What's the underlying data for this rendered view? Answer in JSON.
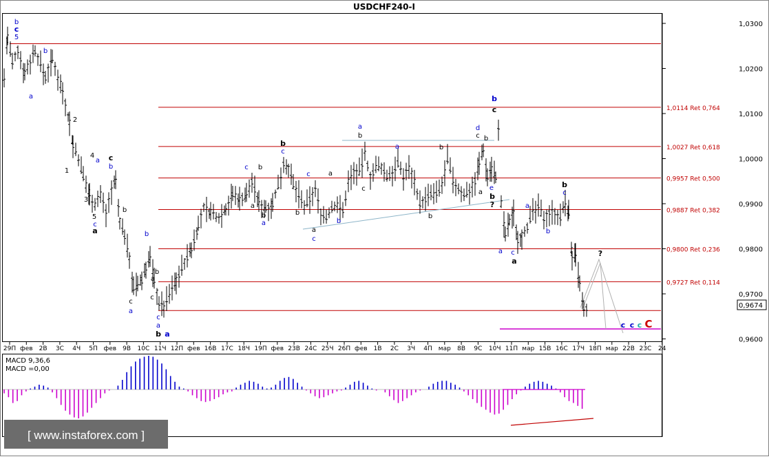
{
  "window": {
    "title": "USDCHF240-I"
  },
  "chart_data": {
    "type": "candlestick",
    "symbol": "USDCHF240-I",
    "timeframe": "H4",
    "y_range": [
      0.9585,
      1.0315
    ],
    "price_ticks": [
      "1,0300",
      "1,0200",
      "1,0100",
      "1,0000",
      "0,9900",
      "0,9800",
      "0,9700",
      "0,9600"
    ],
    "current_price": "0,9674",
    "date_ticks": [
      "29П",
      "фев",
      "2В",
      "3С",
      "4Ч",
      "5П",
      "фев",
      "9В",
      "10С",
      "11Ч",
      "12П",
      "фев",
      "16В",
      "17С",
      "18Ч",
      "19П",
      "фев",
      "23В",
      "24С",
      "25Ч",
      "26П",
      "фев",
      "1В",
      "2С",
      "3Ч",
      "4П",
      "мар",
      "8В",
      "9С",
      "10Ч",
      "11П",
      "мар",
      "15В",
      "16С",
      "17Ч",
      "18П",
      "мар",
      "22В",
      "23С",
      "24"
    ],
    "retracement_levels": [
      {
        "price": 1.0114,
        "label": "1,0114 Ret 0,764"
      },
      {
        "price": 1.0027,
        "label": "1,0027 Ret 0,618"
      },
      {
        "price": 0.9957,
        "label": "0,9957 Ret 0,500"
      },
      {
        "price": 0.9887,
        "label": "0,9887 Ret 0,382"
      },
      {
        "price": 0.98,
        "label": "0,9800 Ret 0,236"
      },
      {
        "price": 0.9727,
        "label": "0,9727 Ret 0,114"
      }
    ],
    "wave_labels": [
      "b",
      "c",
      "5",
      "b",
      "a",
      "1",
      "2",
      "3",
      "4",
      "5",
      "c",
      "a",
      "a",
      "c",
      "b",
      "b",
      "b",
      "c",
      "a",
      "c",
      "a",
      "c",
      "a",
      "b",
      "a",
      "b",
      "c",
      "b",
      "a",
      "b",
      "a",
      "b",
      "c",
      "b",
      "c",
      "a",
      "c",
      "a",
      "b",
      "a",
      "b",
      "c",
      "a",
      "b",
      "b",
      "d",
      "c",
      "b",
      "a",
      "e",
      "b",
      "?",
      "b",
      "c",
      "a",
      "c",
      "a",
      "a",
      "b",
      "b",
      "c",
      "?",
      "c",
      "c",
      "c",
      "C"
    ],
    "indicator": {
      "name": "MACD",
      "params_label": "MACD 9,36,6",
      "value_label": "MACD =0,00",
      "positive_color": "#0000cc",
      "negative_color": "#cc00cc",
      "values": [
        -0.4,
        -0.8,
        -1.4,
        -1.2,
        -0.6,
        -0.2,
        0.1,
        0.3,
        0.5,
        0.4,
        0.2,
        -0.3,
        -0.9,
        -1.6,
        -2.2,
        -2.6,
        -2.9,
        -3.0,
        -2.8,
        -2.4,
        -1.9,
        -1.4,
        -0.9,
        -0.4,
        -0.1,
        0.0,
        0.4,
        1.0,
        1.8,
        2.4,
        2.9,
        3.2,
        3.4,
        3.5,
        3.4,
        3.1,
        2.7,
        2.1,
        1.4,
        0.8,
        0.3,
        0.1,
        -0.2,
        -0.6,
        -0.9,
        -1.2,
        -1.3,
        -1.2,
        -1.0,
        -0.8,
        -0.5,
        -0.3,
        -0.2,
        0.2,
        0.5,
        0.7,
        0.9,
        0.8,
        0.6,
        0.3,
        0.1,
        0.2,
        0.5,
        0.9,
        1.2,
        1.3,
        1.1,
        0.7,
        0.3,
        -0.1,
        -0.4,
        -0.7,
        -0.9,
        -0.8,
        -0.6,
        -0.4,
        -0.2,
        -0.1,
        0.2,
        0.5,
        0.8,
        0.9,
        0.7,
        0.4,
        0.1,
        -0.1,
        0.0,
        -0.3,
        -0.7,
        -1.1,
        -1.4,
        -1.2,
        -0.9,
        -0.6,
        -0.3,
        -0.1,
        0.0,
        0.3,
        0.6,
        0.8,
        0.9,
        0.9,
        0.7,
        0.5,
        0.2,
        -0.2,
        -0.6,
        -1.0,
        -1.4,
        -1.8,
        -2.1,
        -2.4,
        -2.6,
        -2.5,
        -2.1,
        -1.6,
        -1.0,
        -0.5,
        -0.1,
        0.3,
        0.6,
        0.8,
        0.9,
        0.8,
        0.6,
        0.4,
        0.1,
        -0.3,
        -0.8,
        -1.2,
        -1.4,
        -1.7,
        -2.0
      ]
    }
  },
  "watermark": "[ www.instaforex.com ]",
  "colors": {
    "retracement": "#c00000",
    "wave_blue": "#0000cc",
    "wave_black": "#000000",
    "wave_red": "#cc0000",
    "trendline": "#8cb4c8",
    "magenta": "#cc00cc"
  }
}
